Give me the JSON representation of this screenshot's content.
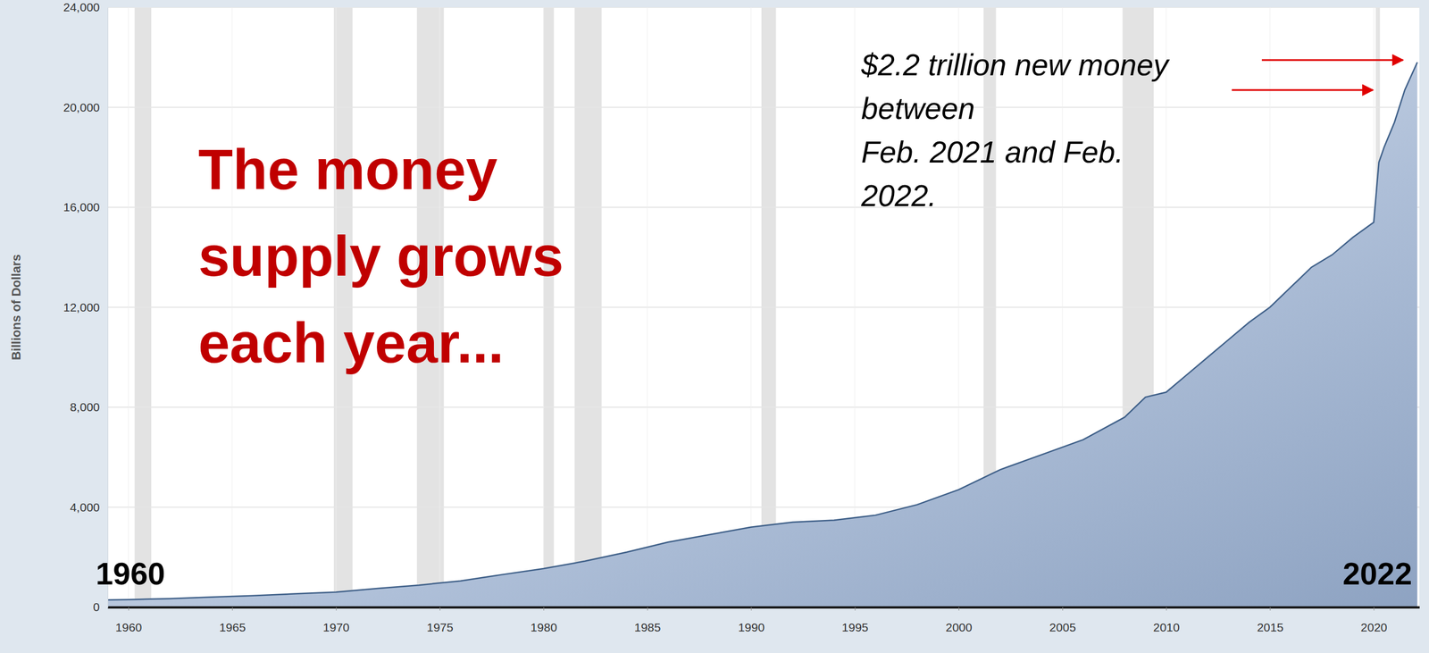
{
  "chart_data": {
    "type": "area",
    "title": [
      "The money",
      "supply grows",
      "each year..."
    ],
    "annotation": [
      "$2.2 trillion new money",
      "between",
      "Feb. 2021 and Feb.",
      "2022."
    ],
    "start_label": "1960",
    "end_label": "2022",
    "ylabel": "Billions of Dollars",
    "x": [
      1959.0,
      1960,
      1962,
      1964,
      1966,
      1968,
      1970,
      1972,
      1974,
      1976,
      1978,
      1980,
      1982,
      1984,
      1986,
      1988,
      1990,
      1992,
      1994,
      1996,
      1998,
      2000,
      2002,
      2004,
      2006,
      2008,
      2009,
      2010,
      2011,
      2012,
      2013,
      2014,
      2015,
      2016,
      2017,
      2018,
      2019,
      2020.0,
      2020.25,
      2020.5,
      2021.0,
      2021.5,
      2022.1
    ],
    "values": [
      290,
      300,
      340,
      400,
      460,
      530,
      600,
      750,
      880,
      1050,
      1300,
      1540,
      1840,
      2200,
      2600,
      2900,
      3200,
      3400,
      3480,
      3680,
      4100,
      4700,
      5500,
      6100,
      6700,
      7600,
      8400,
      8600,
      9300,
      10000,
      10700,
      11400,
      12000,
      12800,
      13600,
      14100,
      14800,
      15400,
      17800,
      18400,
      19400,
      20700,
      21800
    ],
    "color": "#aebfd8",
    "recessions": [
      [
        1960.3,
        1961.1
      ],
      [
        1969.9,
        1970.8
      ],
      [
        1973.9,
        1975.2
      ],
      [
        1980.0,
        1980.5
      ],
      [
        1981.5,
        1982.8
      ],
      [
        1990.5,
        1991.2
      ],
      [
        2001.2,
        2001.8
      ],
      [
        2007.9,
        2009.4
      ],
      [
        2020.1,
        2020.3
      ]
    ],
    "xlim": [
      1959,
      2022.2
    ],
    "xticks": [
      1960,
      1965,
      1970,
      1975,
      1980,
      1985,
      1990,
      1995,
      2000,
      2005,
      2010,
      2015,
      2020
    ],
    "ylim": [
      0,
      24000
    ],
    "yticks": [
      0,
      {
        "value": 4000,
        "label": "4,000"
      },
      {
        "value": 8000,
        "label": "8,000"
      },
      {
        "value": 12000,
        "label": "12,000"
      },
      {
        "value": 16000,
        "label": "16,000"
      },
      {
        "value": 20000,
        "label": "20,000"
      },
      {
        "value": 24000,
        "label": "24,000"
      }
    ],
    "grid": true
  }
}
